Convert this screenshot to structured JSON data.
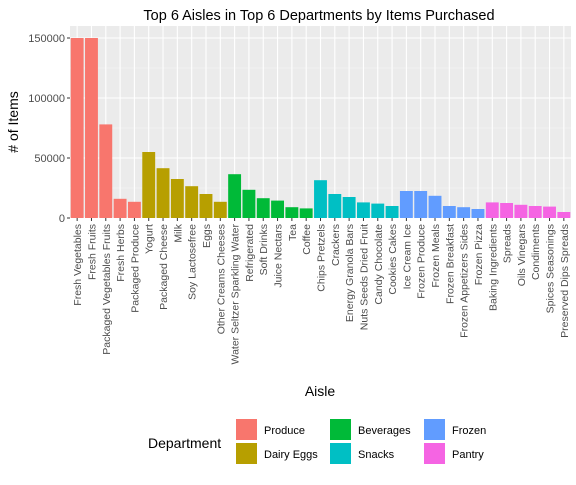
{
  "chart_data": {
    "type": "bar",
    "title": "Top 6 Aisles in Top 6 Departments by Items Purchased",
    "xlabel": "Aisle",
    "ylabel": "# of Items",
    "ylim": [
      0,
      160000
    ],
    "yticks": [
      0,
      50000,
      100000,
      150000
    ],
    "ytick_labels": [
      "0",
      "50000",
      "100000",
      "150000"
    ],
    "grid": true,
    "legend_position": "bottom",
    "legend_title": "Department",
    "departments": [
      {
        "name": "Produce",
        "color": "#F8766D"
      },
      {
        "name": "Dairy Eggs",
        "color": "#B79F00"
      },
      {
        "name": "Beverages",
        "color": "#00BA38"
      },
      {
        "name": "Snacks",
        "color": "#00BFC4"
      },
      {
        "name": "Frozen",
        "color": "#619CFF"
      },
      {
        "name": "Pantry",
        "color": "#F564E3"
      }
    ],
    "categories": [
      "Fresh Vegetables",
      "Fresh Fruits",
      "Packaged Vegetables Fruits",
      "Fresh Herbs",
      "Packaged Produce",
      "Yogurt",
      "Packaged Cheese",
      "Milk",
      "Soy Lactosefree",
      "Eggs",
      "Other Creams Cheeses",
      "Water Seltzer Sparkling Water",
      "Refrigerated",
      "Soft Drinks",
      "Juice Nectars",
      "Tea",
      "Coffee",
      "Chips Pretzels",
      "Crackers",
      "Energy Granola Bars",
      "Nuts Seeds Dried Fruit",
      "Candy Chocolate",
      "Cookies Cakes",
      "Ice Cream Ice",
      "Frozen Produce",
      "Frozen Meals",
      "Frozen Breakfast",
      "Frozen Appetizers Sides",
      "Frozen Pizza",
      "Baking Ingredients",
      "Spreads",
      "Oils Vinegars",
      "Condiments",
      "Spices Seasonings",
      "Preserved Dips Spreads"
    ],
    "values": [
      150000,
      150000,
      78000,
      16000,
      13500,
      55000,
      41500,
      32500,
      26500,
      20000,
      13500,
      36500,
      23500,
      16500,
      14500,
      9000,
      8000,
      31500,
      20000,
      17500,
      13000,
      12000,
      10000,
      22500,
      22500,
      18500,
      10000,
      9000,
      7500,
      13000,
      12500,
      11000,
      10000,
      9500,
      5000
    ],
    "department_of": [
      "Produce",
      "Produce",
      "Produce",
      "Produce",
      "Produce",
      "Dairy Eggs",
      "Dairy Eggs",
      "Dairy Eggs",
      "Dairy Eggs",
      "Dairy Eggs",
      "Dairy Eggs",
      "Beverages",
      "Beverages",
      "Beverages",
      "Beverages",
      "Beverages",
      "Beverages",
      "Snacks",
      "Snacks",
      "Snacks",
      "Snacks",
      "Snacks",
      "Snacks",
      "Frozen",
      "Frozen",
      "Frozen",
      "Frozen",
      "Frozen",
      "Frozen",
      "Pantry",
      "Pantry",
      "Pantry",
      "Pantry",
      "Pantry",
      "Pantry"
    ]
  }
}
